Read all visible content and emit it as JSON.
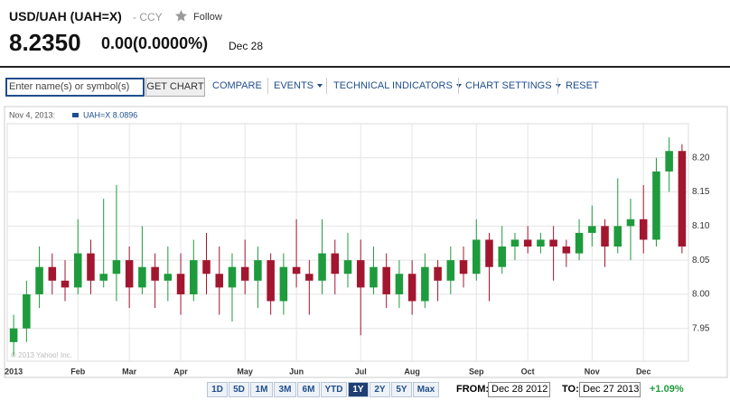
{
  "header": {
    "symbol": "USD/UAH (UAH=X)",
    "exchange": "- CCY",
    "follow": "Follow",
    "price": "8.2350",
    "change": "0.00(0.0000%)",
    "date": "Dec 28"
  },
  "toolbar": {
    "placeholder": "Enter name(s) or symbol(s)",
    "button": "GET CHART",
    "menu": [
      "COMPARE",
      "EVENTS",
      "TECHNICAL INDICATORS",
      "CHART SETTINGS",
      "RESET"
    ]
  },
  "chart_data": {
    "type": "candlestick",
    "legend_date": "Nov 4, 2013:",
    "legend_label": "UAH=X 8.0896",
    "legend_color": "#1f4e8c",
    "watermark": "© 2013 Yahoo! Inc.",
    "categories": [
      "2013",
      null,
      null,
      null,
      null,
      "Feb",
      null,
      null,
      null,
      "Mar",
      null,
      null,
      null,
      "Apr",
      null,
      null,
      null,
      null,
      "May",
      null,
      null,
      null,
      "Jun",
      null,
      null,
      null,
      null,
      "Jul",
      null,
      null,
      null,
      "Aug",
      null,
      null,
      null,
      null,
      "Sep",
      null,
      null,
      null,
      "Oct",
      null,
      null,
      null,
      null,
      "Nov",
      null,
      null,
      null,
      "Dec",
      null,
      null,
      null
    ],
    "open": [
      7.93,
      7.95,
      8.0,
      8.04,
      8.02,
      8.01,
      8.06,
      8.02,
      8.03,
      8.05,
      8.01,
      8.04,
      8.02,
      8.03,
      8.0,
      8.05,
      8.03,
      8.01,
      8.04,
      8.02,
      8.05,
      7.99,
      8.04,
      8.03,
      8.02,
      8.06,
      8.03,
      8.05,
      8.01,
      8.04,
      8.0,
      8.03,
      7.99,
      8.04,
      8.02,
      8.05,
      8.03,
      8.08,
      8.04,
      8.07,
      8.08,
      8.07,
      8.08,
      8.07,
      8.06,
      8.09,
      8.1,
      8.07,
      8.1,
      8.11,
      8.08,
      8.18,
      8.21
    ],
    "high": [
      7.97,
      8.02,
      8.07,
      8.06,
      8.05,
      8.11,
      8.08,
      8.14,
      8.16,
      8.07,
      8.1,
      8.06,
      8.07,
      8.06,
      8.08,
      8.09,
      8.07,
      8.06,
      8.08,
      8.07,
      8.06,
      8.06,
      8.11,
      8.05,
      8.11,
      8.08,
      8.09,
      8.08,
      8.07,
      8.06,
      8.05,
      8.05,
      8.06,
      8.05,
      8.07,
      8.07,
      8.11,
      8.09,
      8.1,
      8.09,
      8.1,
      8.09,
      8.1,
      8.08,
      8.11,
      8.13,
      8.11,
      8.17,
      8.14,
      8.16,
      8.2,
      8.23,
      8.22
    ],
    "low": [
      7.91,
      7.93,
      7.98,
      8.0,
      7.99,
      8.0,
      8.0,
      8.01,
      7.99,
      7.98,
      8.0,
      7.98,
      7.99,
      7.97,
      7.99,
      8.0,
      7.97,
      7.96,
      8.0,
      7.98,
      7.97,
      7.97,
      8.01,
      7.97,
      8.0,
      8.0,
      8.01,
      7.94,
      8.0,
      7.98,
      7.98,
      7.97,
      7.98,
      7.99,
      8.0,
      8.01,
      8.02,
      7.99,
      8.03,
      8.05,
      8.06,
      8.06,
      8.02,
      8.04,
      8.05,
      8.07,
      8.04,
      8.06,
      8.05,
      8.06,
      8.07,
      8.15,
      8.06
    ],
    "close": [
      7.95,
      8.0,
      8.04,
      8.02,
      8.01,
      8.06,
      8.02,
      8.03,
      8.05,
      8.01,
      8.04,
      8.02,
      8.03,
      8.0,
      8.05,
      8.03,
      8.01,
      8.04,
      8.02,
      8.05,
      7.99,
      8.04,
      8.03,
      8.02,
      8.06,
      8.03,
      8.05,
      8.01,
      8.04,
      8.0,
      8.03,
      7.99,
      8.04,
      8.02,
      8.05,
      8.03,
      8.08,
      8.04,
      8.07,
      8.08,
      8.07,
      8.08,
      8.07,
      8.06,
      8.09,
      8.1,
      8.07,
      8.1,
      8.11,
      8.08,
      8.18,
      8.21,
      8.07
    ],
    "up_color": "#1e9b3c",
    "down_color": "#a3162f",
    "ylim": [
      7.902,
      8.25
    ],
    "yticks": [
      7.95,
      {
        "value": 8,
        "label": "8.00"
      },
      8.05,
      {
        "value": 8.1,
        "label": "8.10"
      },
      8.15,
      {
        "value": 8.2,
        "label": "8.20"
      }
    ],
    "grid": true
  },
  "footer": {
    "ranges": [
      "1D",
      "5D",
      "1M",
      "3M",
      "6M",
      "YTD",
      "1Y",
      "2Y",
      "5Y",
      "Max"
    ],
    "selected": 6,
    "from_label": "FROM:",
    "from_value": "Dec 28 2012",
    "to_label": "TO:",
    "to_value": "Dec 27 2013",
    "change": "+1.09%"
  }
}
